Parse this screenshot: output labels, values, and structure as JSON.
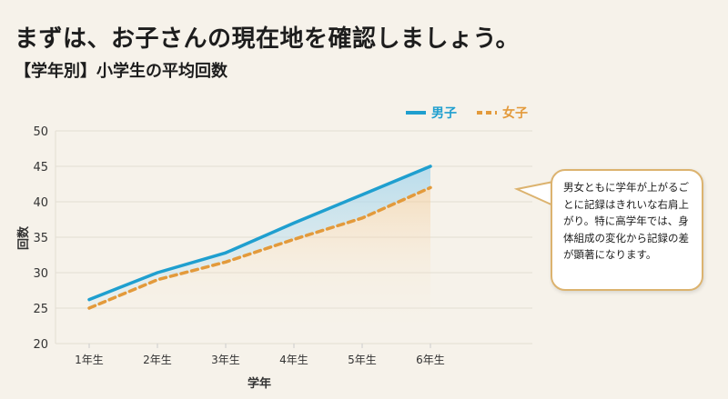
{
  "header": {
    "title": "まずは、お子さんの現在地を確認しましょう。",
    "subtitle": "【学年別】小学生の平均回数"
  },
  "chart_data": {
    "type": "line",
    "title": "【学年別】小学生の平均回数",
    "xlabel": "学年",
    "ylabel": "回数",
    "categories": [
      "1年生",
      "2年生",
      "3年生",
      "4年生",
      "5年生",
      "6年生"
    ],
    "ylim": [
      20,
      50
    ],
    "yticks": [
      20,
      25,
      30,
      35,
      40,
      45,
      50
    ],
    "grid": true,
    "legend": "top-right",
    "series": [
      {
        "name": "男子",
        "values": [
          26.2,
          30,
          32.8,
          37,
          41,
          45
        ],
        "color": "#1f9fcf",
        "style": "solid"
      },
      {
        "name": "女子",
        "values": [
          25,
          29,
          31.5,
          34.7,
          37.7,
          42
        ],
        "color": "#e39a3b",
        "style": "dashed"
      }
    ],
    "annotation": "男女ともに学年が上がるごとに記録はきれいな右肩上がり。特に高学年では、身体組成の変化から記録の差が顕著になります。"
  }
}
